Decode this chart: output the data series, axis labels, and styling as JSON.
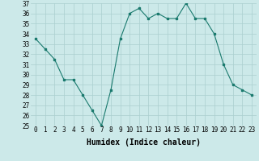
{
  "x": [
    0,
    1,
    2,
    3,
    4,
    5,
    6,
    7,
    8,
    9,
    10,
    11,
    12,
    13,
    14,
    15,
    16,
    17,
    18,
    19,
    20,
    21,
    22,
    23
  ],
  "y": [
    33.5,
    32.5,
    31.5,
    29.5,
    29.5,
    28.0,
    26.5,
    25.0,
    28.5,
    33.5,
    36.0,
    36.5,
    35.5,
    36.0,
    35.5,
    35.5,
    37.0,
    35.5,
    35.5,
    34.0,
    31.0,
    29.0,
    28.5,
    28.0
  ],
  "line_color": "#1a7a6e",
  "bg_color": "#cce9e9",
  "grid_color": "#aacfcf",
  "xlabel": "Humidex (Indice chaleur)",
  "ylim": [
    25,
    37
  ],
  "yticks": [
    25,
    26,
    27,
    28,
    29,
    30,
    31,
    32,
    33,
    34,
    35,
    36,
    37
  ],
  "xticks": [
    0,
    1,
    2,
    3,
    4,
    5,
    6,
    7,
    8,
    9,
    10,
    11,
    12,
    13,
    14,
    15,
    16,
    17,
    18,
    19,
    20,
    21,
    22,
    23
  ],
  "tick_label_fontsize": 5.5,
  "xlabel_fontsize": 7.0
}
